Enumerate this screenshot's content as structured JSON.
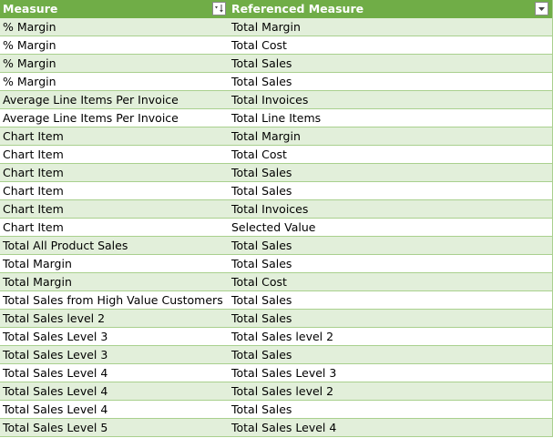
{
  "table": {
    "headers": [
      "Measure",
      "Referenced Measure"
    ],
    "header_icons": [
      "sort-filter-icon",
      "filter-dropdown-icon"
    ],
    "rows": [
      [
        "% Margin",
        "Total Margin"
      ],
      [
        "% Margin",
        "Total Cost"
      ],
      [
        "% Margin",
        "Total Sales"
      ],
      [
        "% Margin",
        "Total Sales"
      ],
      [
        "Average Line Items Per Invoice",
        "Total Invoices"
      ],
      [
        "Average Line Items Per Invoice",
        "Total Line Items"
      ],
      [
        "Chart Item",
        "Total Margin"
      ],
      [
        "Chart Item",
        "Total Cost"
      ],
      [
        "Chart Item",
        "Total Sales"
      ],
      [
        "Chart Item",
        "Total Sales"
      ],
      [
        "Chart Item",
        "Total Invoices"
      ],
      [
        "Chart Item",
        "Selected Value"
      ],
      [
        "Total All Product Sales",
        "Total Sales"
      ],
      [
        "Total Margin",
        "Total Sales"
      ],
      [
        "Total Margin",
        "Total Cost"
      ],
      [
        "Total Sales from High Value Customers",
        "Total Sales"
      ],
      [
        "Total Sales level 2",
        "Total Sales"
      ],
      [
        "Total Sales Level 3",
        "Total Sales level 2"
      ],
      [
        "Total Sales Level 3",
        "Total Sales"
      ],
      [
        "Total Sales Level 4",
        "Total Sales Level 3"
      ],
      [
        "Total Sales Level 4",
        "Total Sales level 2"
      ],
      [
        "Total Sales Level 4",
        "Total Sales"
      ],
      [
        "Total Sales Level 5",
        "Total Sales Level 4"
      ]
    ]
  },
  "colors": {
    "header_bg": "#70ad47",
    "band_bg": "#e2efda",
    "border": "#a9d08e"
  }
}
